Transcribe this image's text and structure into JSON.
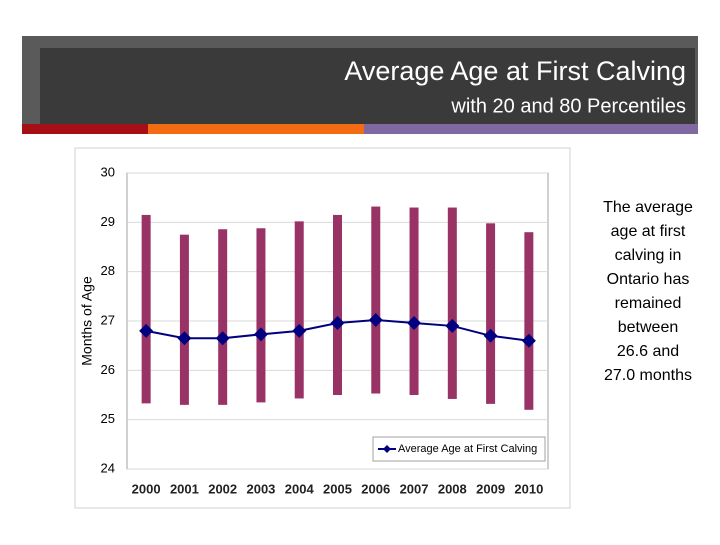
{
  "slide": {
    "title": "Average Age at First Calving",
    "subtitle": "with 20 and 80 Percentiles",
    "note_lines": [
      "The average",
      "age at first",
      "calving in",
      "Ontario has",
      "remained",
      "between",
      "26.6 and",
      "27.0 months"
    ]
  },
  "chart_data": {
    "type": "line",
    "y_label": "Months of Age",
    "categories": [
      "2000",
      "2001",
      "2002",
      "2003",
      "2004",
      "2005",
      "2006",
      "2007",
      "2008",
      "2009",
      "2010"
    ],
    "series": [
      {
        "name": "Average Age at First Calving",
        "color": "#000080",
        "values": [
          26.8,
          26.65,
          26.65,
          26.73,
          26.8,
          26.96,
          27.02,
          26.96,
          26.9,
          26.7,
          26.6
        ]
      }
    ],
    "percentile_range": {
      "color": "#993366",
      "low": [
        25.33,
        25.3,
        25.3,
        25.35,
        25.43,
        25.5,
        25.53,
        25.5,
        25.42,
        25.32,
        25.2
      ],
      "high": [
        29.15,
        28.75,
        28.86,
        28.88,
        29.02,
        29.15,
        29.32,
        29.3,
        29.3,
        28.98,
        28.8
      ]
    },
    "ylim": [
      24,
      30
    ],
    "yticks": [
      24,
      25,
      26,
      27,
      28,
      29,
      30
    ],
    "grid": true
  }
}
